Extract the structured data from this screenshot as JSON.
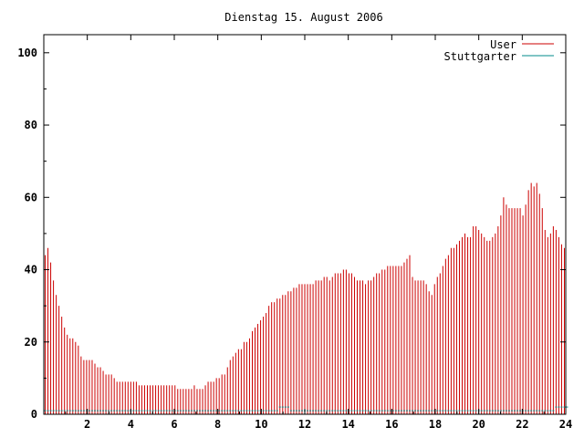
{
  "chart_data": {
    "type": "bar",
    "title": "Dienstag 15. August 2006",
    "xlim": [
      0,
      24
    ],
    "ylim": [
      0,
      105
    ],
    "x_ticks": [
      "2",
      "4",
      "6",
      "8",
      "10",
      "12",
      "14",
      "16",
      "18",
      "20",
      "22",
      "24"
    ],
    "y_ticks": [
      "0",
      "20",
      "40",
      "60",
      "80",
      "100"
    ],
    "legend_position": "top-right",
    "grid": false,
    "series": [
      {
        "name": "User",
        "color": "#cc0000",
        "values": [
          44,
          46,
          42,
          37,
          33,
          30,
          27,
          24,
          22,
          21,
          21,
          20,
          19,
          16,
          15,
          15,
          15,
          15,
          14,
          13,
          13,
          12,
          11,
          11,
          11,
          10,
          9,
          9,
          9,
          9,
          9,
          9,
          9,
          9,
          8,
          8,
          8,
          8,
          8,
          8,
          8,
          8,
          8,
          8,
          8,
          8,
          8,
          8,
          7,
          7,
          7,
          7,
          7,
          7,
          8,
          7,
          7,
          7,
          8,
          9,
          9,
          9,
          10,
          10,
          11,
          11,
          13,
          15,
          16,
          17,
          18,
          18,
          20,
          20,
          21,
          23,
          24,
          25,
          26,
          27,
          28,
          30,
          31,
          31,
          32,
          32,
          33,
          33,
          34,
          34,
          35,
          35,
          36,
          36,
          36,
          36,
          36,
          36,
          37,
          37,
          37,
          38,
          38,
          37,
          38,
          39,
          39,
          39,
          40,
          40,
          39,
          39,
          38,
          37,
          37,
          37,
          36,
          37,
          37,
          38,
          39,
          39,
          40,
          40,
          41,
          41,
          41,
          41,
          41,
          41,
          42,
          43,
          44,
          38,
          37,
          37,
          37,
          37,
          36,
          34,
          33,
          36,
          38,
          39,
          41,
          43,
          44,
          46,
          46,
          47,
          48,
          49,
          50,
          49,
          49,
          52,
          52,
          51,
          50,
          49,
          48,
          48,
          49,
          50,
          52,
          55,
          60,
          58,
          57,
          57,
          57,
          57,
          57,
          55,
          58,
          62,
          64,
          63,
          64,
          61,
          57,
          51,
          49,
          50,
          52,
          51,
          49,
          47,
          46
        ]
      },
      {
        "name": "Stuttgarter",
        "color": "#008b8b",
        "values": [
          1,
          1,
          1,
          1,
          1,
          1,
          1,
          1,
          1,
          1,
          1,
          1,
          1,
          1,
          1,
          1,
          1,
          1,
          1,
          1,
          1,
          1,
          1,
          1,
          1,
          1,
          1,
          1,
          1,
          1,
          1,
          1,
          1,
          1,
          1,
          1,
          1,
          1,
          1,
          1,
          1,
          1,
          1,
          1,
          1,
          1,
          1,
          1,
          1,
          1,
          1,
          1,
          1,
          1,
          1,
          1,
          1,
          1,
          1,
          1,
          1,
          1,
          1,
          1,
          1,
          1,
          1,
          1,
          1,
          1,
          1,
          1,
          1,
          1,
          1,
          1,
          1,
          1,
          1,
          1,
          1,
          1,
          1,
          1,
          1,
          2,
          2,
          2,
          2,
          1,
          1,
          1,
          1,
          1,
          1,
          1,
          1,
          1,
          1,
          1,
          1,
          1,
          1,
          1,
          1,
          1,
          1,
          1,
          1,
          1,
          1,
          1,
          1,
          1,
          1,
          1,
          1,
          1,
          1,
          1,
          1,
          1,
          1,
          1,
          1,
          1,
          1,
          1,
          1,
          1,
          1,
          1,
          1,
          1,
          1,
          1,
          1,
          1,
          1,
          1,
          1,
          1,
          1,
          1,
          1,
          1,
          1,
          1,
          1,
          1,
          1,
          1,
          1,
          1,
          1,
          1,
          1,
          1,
          1,
          1,
          1,
          1,
          1,
          1,
          1,
          1,
          1,
          1,
          1,
          1,
          1,
          1,
          1,
          1,
          1,
          1,
          1,
          1,
          1,
          1,
          1,
          1,
          1,
          1,
          1,
          2,
          2,
          2,
          2,
          2
        ]
      }
    ]
  }
}
